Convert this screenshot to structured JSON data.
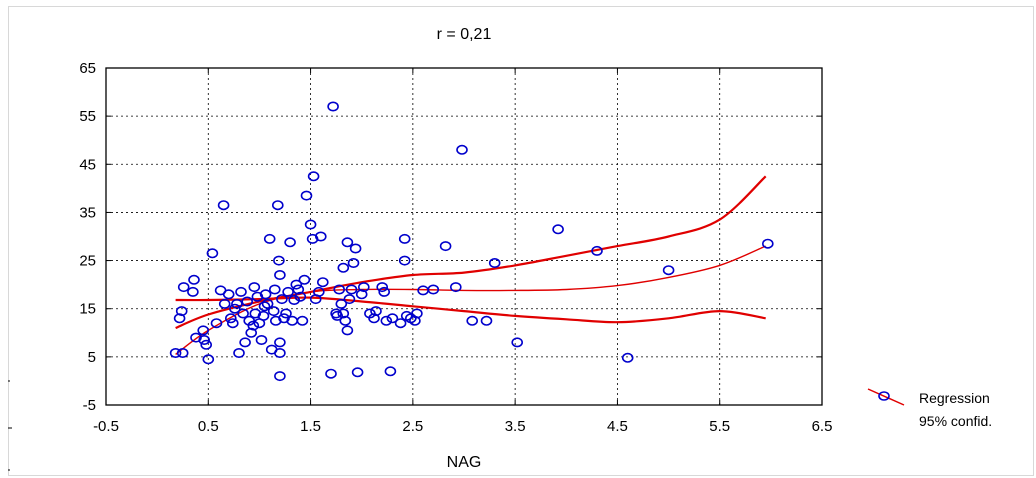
{
  "chart_data": {
    "type": "scatter",
    "title": "r = 0,21",
    "xlabel": "NAG",
    "ylabel": "",
    "xlim": [
      -0.5,
      6.5
    ],
    "ylim": [
      -5,
      65
    ],
    "xticks": [
      "-0.5",
      "0.5",
      "1.5",
      "2.5",
      "3.5",
      "4.5",
      "5.5",
      "6.5"
    ],
    "yticks": [
      "-5",
      "5",
      "15",
      "25",
      "35",
      "45",
      "55",
      "65"
    ],
    "grid": true,
    "legend": [
      "Regression",
      "95% confid."
    ],
    "legend_position": "right",
    "colors": {
      "points": "#0000cc",
      "regression": "#e00000"
    },
    "points": [
      [
        0.18,
        5.8
      ],
      [
        0.25,
        5.8
      ],
      [
        0.22,
        13
      ],
      [
        0.24,
        14.5
      ],
      [
        0.26,
        19.5
      ],
      [
        0.35,
        18.5
      ],
      [
        0.36,
        21
      ],
      [
        0.38,
        9
      ],
      [
        0.45,
        10.5
      ],
      [
        0.46,
        8.5
      ],
      [
        0.48,
        7.5
      ],
      [
        0.5,
        4.5
      ],
      [
        0.54,
        26.5
      ],
      [
        0.58,
        12
      ],
      [
        0.62,
        18.8
      ],
      [
        0.65,
        36.5
      ],
      [
        0.66,
        16
      ],
      [
        0.7,
        18
      ],
      [
        0.72,
        13
      ],
      [
        0.74,
        12
      ],
      [
        0.76,
        15
      ],
      [
        0.78,
        16
      ],
      [
        0.8,
        5.8
      ],
      [
        0.82,
        18.5
      ],
      [
        0.84,
        14
      ],
      [
        0.86,
        8
      ],
      [
        0.88,
        16.5
      ],
      [
        0.9,
        12.5
      ],
      [
        0.92,
        10
      ],
      [
        0.94,
        11.5
      ],
      [
        0.95,
        19.5
      ],
      [
        0.96,
        14
      ],
      [
        0.98,
        17.5
      ],
      [
        1.0,
        12
      ],
      [
        1.02,
        8.5
      ],
      [
        1.04,
        13.5
      ],
      [
        1.05,
        15.5
      ],
      [
        1.06,
        18
      ],
      [
        1.08,
        16
      ],
      [
        1.1,
        29.5
      ],
      [
        1.12,
        6.5
      ],
      [
        1.14,
        14.5
      ],
      [
        1.15,
        19
      ],
      [
        1.16,
        12.5
      ],
      [
        1.18,
        36.5
      ],
      [
        1.19,
        25
      ],
      [
        1.2,
        22
      ],
      [
        1.2,
        8
      ],
      [
        1.2,
        5.8
      ],
      [
        1.2,
        1
      ],
      [
        1.22,
        17
      ],
      [
        1.24,
        13
      ],
      [
        1.26,
        14
      ],
      [
        1.28,
        18.5
      ],
      [
        1.3,
        28.8
      ],
      [
        1.32,
        12.5
      ],
      [
        1.34,
        16.8
      ],
      [
        1.36,
        20
      ],
      [
        1.38,
        19
      ],
      [
        1.4,
        17.5
      ],
      [
        1.42,
        12.5
      ],
      [
        1.44,
        21
      ],
      [
        1.46,
        38.5
      ],
      [
        1.5,
        32.5
      ],
      [
        1.52,
        29.5
      ],
      [
        1.53,
        42.5
      ],
      [
        1.55,
        17
      ],
      [
        1.58,
        18.5
      ],
      [
        1.6,
        30
      ],
      [
        1.62,
        20.5
      ],
      [
        1.7,
        1.5
      ],
      [
        1.72,
        57
      ],
      [
        1.75,
        14
      ],
      [
        1.76,
        13.5
      ],
      [
        1.78,
        19
      ],
      [
        1.8,
        16
      ],
      [
        1.82,
        23.5
      ],
      [
        1.82,
        14
      ],
      [
        1.84,
        12.5
      ],
      [
        1.86,
        10.5
      ],
      [
        1.86,
        28.8
      ],
      [
        1.88,
        17
      ],
      [
        1.9,
        19
      ],
      [
        1.92,
        24.5
      ],
      [
        1.94,
        27.5
      ],
      [
        1.96,
        1.8
      ],
      [
        2.0,
        18
      ],
      [
        2.02,
        19.5
      ],
      [
        2.08,
        14
      ],
      [
        2.12,
        13
      ],
      [
        2.14,
        14.5
      ],
      [
        2.2,
        19.5
      ],
      [
        2.22,
        18.5
      ],
      [
        2.24,
        12.5
      ],
      [
        2.28,
        2
      ],
      [
        2.3,
        13
      ],
      [
        2.38,
        12
      ],
      [
        2.42,
        25
      ],
      [
        2.42,
        29.5
      ],
      [
        2.44,
        13.5
      ],
      [
        2.48,
        13
      ],
      [
        2.52,
        12.5
      ],
      [
        2.54,
        14
      ],
      [
        2.6,
        18.8
      ],
      [
        2.7,
        19
      ],
      [
        2.82,
        28
      ],
      [
        2.92,
        19.5
      ],
      [
        2.98,
        48
      ],
      [
        3.08,
        12.5
      ],
      [
        3.22,
        12.5
      ],
      [
        3.3,
        24.5
      ],
      [
        3.52,
        8
      ],
      [
        3.92,
        31.5
      ],
      [
        4.3,
        27
      ],
      [
        4.6,
        4.8
      ],
      [
        5.0,
        23
      ],
      [
        5.97,
        28.5
      ]
    ],
    "regression_curve": [
      [
        0.18,
        5.5
      ],
      [
        0.5,
        10.5
      ],
      [
        1.0,
        16
      ],
      [
        1.5,
        18.5
      ],
      [
        2.0,
        19
      ],
      [
        2.5,
        19
      ],
      [
        3.0,
        18.8
      ],
      [
        3.5,
        18.8
      ],
      [
        4.0,
        19
      ],
      [
        4.5,
        19.8
      ],
      [
        5.0,
        21.5
      ],
      [
        5.5,
        24
      ],
      [
        5.95,
        28
      ]
    ],
    "confidence_upper": [
      [
        0.18,
        11
      ],
      [
        0.5,
        13.8
      ],
      [
        1.0,
        16.5
      ],
      [
        1.5,
        18.5
      ],
      [
        2.0,
        20.5
      ],
      [
        2.5,
        22
      ],
      [
        3.0,
        22.5
      ],
      [
        3.5,
        24
      ],
      [
        4.0,
        26
      ],
      [
        4.5,
        28
      ],
      [
        5.0,
        30
      ],
      [
        5.5,
        33.5
      ],
      [
        5.95,
        42.5
      ]
    ],
    "confidence_lower": [
      [
        0.18,
        16.8
      ],
      [
        0.5,
        16.8
      ],
      [
        1.0,
        17
      ],
      [
        1.5,
        17.3
      ],
      [
        2.0,
        16.5
      ],
      [
        2.5,
        15.5
      ],
      [
        3.0,
        14.5
      ],
      [
        3.5,
        13.5
      ],
      [
        4.0,
        12.8
      ],
      [
        4.5,
        12.2
      ],
      [
        5.0,
        13
      ],
      [
        5.5,
        14.5
      ],
      [
        5.95,
        13
      ]
    ]
  }
}
